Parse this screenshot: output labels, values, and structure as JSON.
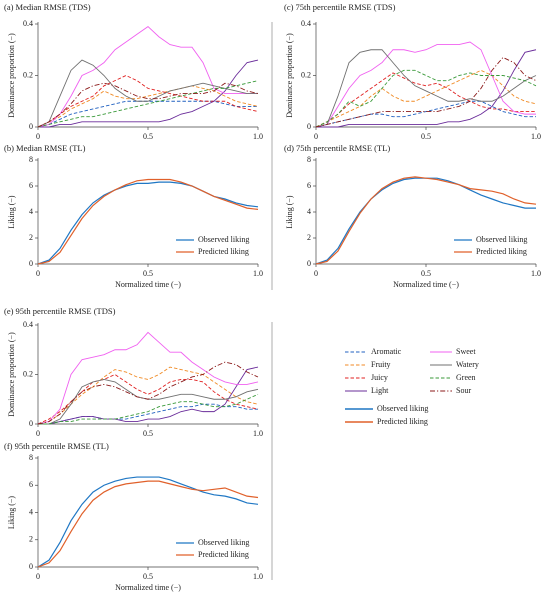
{
  "chart_data": [
    {
      "type": "line",
      "title": "(a) Median RMSE (TDS)",
      "ylabel": "Dominance proportion (−)",
      "x": [
        0,
        0.05,
        0.1,
        0.15,
        0.2,
        0.25,
        0.3,
        0.35,
        0.4,
        0.45,
        0.5,
        0.55,
        0.6,
        0.65,
        0.7,
        0.75,
        0.8,
        0.85,
        0.9,
        0.95,
        1
      ],
      "xlim": [
        0,
        1
      ],
      "xticks": [
        0,
        0.5,
        {
          "value": 1,
          "label": "1.0"
        }
      ],
      "ylim": [
        0,
        0.4
      ],
      "yticks": [
        0,
        0.2,
        0.4
      ],
      "legend": false,
      "series": [
        {
          "name": "Aromatic",
          "color": "#2060c0",
          "style": "dashed",
          "values": [
            0,
            0.01,
            0.03,
            0.05,
            0.06,
            0.07,
            0.08,
            0.09,
            0.1,
            0.1,
            0.1,
            0.1,
            0.1,
            0.1,
            0.1,
            0.1,
            0.1,
            0.09,
            0.08,
            0.08,
            0.08
          ]
        },
        {
          "name": "Fruity",
          "color": "#f08a24",
          "style": "dashed",
          "values": [
            0,
            0.02,
            0.04,
            0.07,
            0.09,
            0.11,
            0.14,
            0.12,
            0.11,
            0.11,
            0.12,
            0.13,
            0.14,
            0.15,
            0.16,
            0.15,
            0.14,
            0.12,
            0.1,
            0.09,
            0.08
          ]
        },
        {
          "name": "Juicy",
          "color": "#e02020",
          "style": "dashed",
          "values": [
            0,
            0.02,
            0.05,
            0.08,
            0.1,
            0.12,
            0.16,
            0.18,
            0.2,
            0.18,
            0.15,
            0.14,
            0.13,
            0.12,
            0.11,
            0.1,
            0.1,
            0.1,
            0.08,
            0.07,
            0.06
          ]
        },
        {
          "name": "Light",
          "color": "#6a2c9a",
          "style": "solid",
          "values": [
            0,
            0,
            0.01,
            0.01,
            0.02,
            0.02,
            0.02,
            0.02,
            0.02,
            0.02,
            0.02,
            0.02,
            0.03,
            0.05,
            0.06,
            0.08,
            0.1,
            0.14,
            0.2,
            0.25,
            0.26
          ]
        },
        {
          "name": "Sweet",
          "color": "#f060f0",
          "style": "solid",
          "values": [
            0,
            0.01,
            0.05,
            0.12,
            0.2,
            0.22,
            0.25,
            0.3,
            0.33,
            0.36,
            0.39,
            0.35,
            0.32,
            0.31,
            0.31,
            0.25,
            0.15,
            0.13,
            0.13,
            0.13,
            0.13
          ]
        },
        {
          "name": "Watery",
          "color": "#707070",
          "style": "solid",
          "values": [
            0,
            0.02,
            0.12,
            0.22,
            0.26,
            0.24,
            0.2,
            0.15,
            0.12,
            0.1,
            0.1,
            0.12,
            0.14,
            0.15,
            0.16,
            0.17,
            0.16,
            0.15,
            0.14,
            0.13,
            0.13
          ]
        },
        {
          "name": "Green",
          "color": "#3a9a3a",
          "style": "dashed",
          "values": [
            0,
            0.01,
            0.02,
            0.03,
            0.04,
            0.04,
            0.05,
            0.06,
            0.07,
            0.08,
            0.09,
            0.1,
            0.11,
            0.12,
            0.13,
            0.14,
            0.15,
            0.15,
            0.16,
            0.17,
            0.18
          ]
        },
        {
          "name": "Sour",
          "color": "#8b1a1a",
          "style": "dashdot",
          "values": [
            0,
            0.02,
            0.05,
            0.09,
            0.14,
            0.16,
            0.17,
            0.16,
            0.14,
            0.12,
            0.11,
            0.11,
            0.12,
            0.13,
            0.13,
            0.13,
            0.14,
            0.17,
            0.16,
            0.14,
            0.13
          ]
        }
      ]
    },
    {
      "type": "line",
      "title": "(b) Median RMSE (TL)",
      "ylabel": "Liking (−)",
      "xlabel": "Normalized time (−)",
      "x": [
        0,
        0.05,
        0.1,
        0.15,
        0.2,
        0.25,
        0.3,
        0.35,
        0.4,
        0.45,
        0.5,
        0.55,
        0.6,
        0.65,
        0.7,
        0.75,
        0.8,
        0.85,
        0.9,
        0.95,
        1
      ],
      "xlim": [
        0,
        1
      ],
      "xticks": [
        0,
        0.5,
        {
          "value": 1,
          "label": "1.0"
        }
      ],
      "ylim": [
        0,
        8
      ],
      "yticks": [
        0,
        2,
        4,
        6,
        8
      ],
      "legend": "lower right",
      "series": [
        {
          "name": "Observed liking",
          "color": "#1f77c4",
          "style": "solid",
          "values": [
            0,
            0.3,
            1.2,
            2.6,
            3.8,
            4.7,
            5.3,
            5.7,
            6.0,
            6.2,
            6.2,
            6.3,
            6.3,
            6.2,
            6.0,
            5.6,
            5.2,
            5.0,
            4.7,
            4.5,
            4.4
          ]
        },
        {
          "name": "Predicted liking",
          "color": "#e0602a",
          "style": "solid",
          "values": [
            0,
            0.2,
            0.9,
            2.2,
            3.5,
            4.5,
            5.2,
            5.7,
            6.1,
            6.4,
            6.5,
            6.5,
            6.5,
            6.3,
            6.0,
            5.6,
            5.2,
            4.9,
            4.6,
            4.3,
            4.2
          ]
        }
      ]
    },
    {
      "type": "line",
      "title": "(c) 75th percentile RMSE (TDS)",
      "ylabel": "Dominance proportion (−)",
      "x": [
        0,
        0.05,
        0.1,
        0.15,
        0.2,
        0.25,
        0.3,
        0.35,
        0.4,
        0.45,
        0.5,
        0.55,
        0.6,
        0.65,
        0.7,
        0.75,
        0.8,
        0.85,
        0.9,
        0.95,
        1
      ],
      "xlim": [
        0,
        1
      ],
      "xticks": [
        0,
        0.5,
        {
          "value": 1,
          "label": "1.0"
        }
      ],
      "ylim": [
        0,
        0.4
      ],
      "yticks": [
        0,
        0.2,
        0.4
      ],
      "legend": false,
      "series": [
        {
          "name": "Aromatic",
          "color": "#2060c0",
          "style": "dashed",
          "values": [
            0,
            0.01,
            0.02,
            0.03,
            0.04,
            0.05,
            0.05,
            0.04,
            0.04,
            0.05,
            0.06,
            0.07,
            0.08,
            0.09,
            0.1,
            0.1,
            0.08,
            0.06,
            0.05,
            0.04,
            0.04
          ]
        },
        {
          "name": "Fruity",
          "color": "#f08a24",
          "style": "dashed",
          "values": [
            0,
            0.02,
            0.04,
            0.06,
            0.08,
            0.12,
            0.15,
            0.12,
            0.1,
            0.1,
            0.12,
            0.14,
            0.16,
            0.18,
            0.2,
            0.22,
            0.2,
            0.16,
            0.12,
            0.1,
            0.09
          ]
        },
        {
          "name": "Juicy",
          "color": "#e02020",
          "style": "dashed",
          "values": [
            0,
            0.02,
            0.05,
            0.09,
            0.12,
            0.15,
            0.18,
            0.21,
            0.19,
            0.17,
            0.16,
            0.17,
            0.15,
            0.12,
            0.1,
            0.08,
            0.07,
            0.07,
            0.06,
            0.06,
            0.06
          ]
        },
        {
          "name": "Light",
          "color": "#6a2c9a",
          "style": "solid",
          "values": [
            0,
            0,
            0,
            0.01,
            0.01,
            0.01,
            0.01,
            0.01,
            0.01,
            0.01,
            0.01,
            0.01,
            0.02,
            0.02,
            0.03,
            0.05,
            0.08,
            0.14,
            0.22,
            0.29,
            0.3
          ]
        },
        {
          "name": "Sweet",
          "color": "#f060f0",
          "style": "solid",
          "values": [
            0,
            0.01,
            0.08,
            0.15,
            0.2,
            0.22,
            0.25,
            0.3,
            0.3,
            0.29,
            0.3,
            0.32,
            0.32,
            0.32,
            0.33,
            0.3,
            0.2,
            0.1,
            0.06,
            0.05,
            0.05
          ]
        },
        {
          "name": "Watery",
          "color": "#707070",
          "style": "solid",
          "values": [
            0,
            0.01,
            0.12,
            0.25,
            0.29,
            0.3,
            0.3,
            0.25,
            0.2,
            0.16,
            0.14,
            0.12,
            0.1,
            0.1,
            0.11,
            0.1,
            0.1,
            0.12,
            0.15,
            0.18,
            0.2
          ]
        },
        {
          "name": "Green",
          "color": "#3a9a3a",
          "style": "dashed",
          "values": [
            0,
            0.02,
            0.05,
            0.1,
            0.08,
            0.1,
            0.15,
            0.2,
            0.22,
            0.22,
            0.2,
            0.18,
            0.18,
            0.2,
            0.21,
            0.2,
            0.2,
            0.2,
            0.19,
            0.18,
            0.16
          ]
        },
        {
          "name": "Sour",
          "color": "#8b1a1a",
          "style": "dashdot",
          "values": [
            0,
            0.01,
            0.02,
            0.03,
            0.04,
            0.05,
            0.06,
            0.06,
            0.06,
            0.06,
            0.06,
            0.06,
            0.07,
            0.08,
            0.1,
            0.15,
            0.22,
            0.27,
            0.25,
            0.2,
            0.18
          ]
        }
      ]
    },
    {
      "type": "line",
      "title": "(d) 75th percentile RMSE (TL)",
      "ylabel": "Liking (−)",
      "xlabel": "Normalized time (−)",
      "x": [
        0,
        0.05,
        0.1,
        0.15,
        0.2,
        0.25,
        0.3,
        0.35,
        0.4,
        0.45,
        0.5,
        0.55,
        0.6,
        0.65,
        0.7,
        0.75,
        0.8,
        0.85,
        0.9,
        0.95,
        1
      ],
      "xlim": [
        0,
        1
      ],
      "xticks": [
        0,
        0.5,
        {
          "value": 1,
          "label": "1.0"
        }
      ],
      "ylim": [
        0,
        8
      ],
      "yticks": [
        0,
        2,
        4,
        6,
        8
      ],
      "legend": "lower right",
      "series": [
        {
          "name": "Observed liking",
          "color": "#1f77c4",
          "style": "solid",
          "values": [
            0,
            0.3,
            1.2,
            2.7,
            4.0,
            5.0,
            5.7,
            6.2,
            6.5,
            6.6,
            6.6,
            6.6,
            6.4,
            6.1,
            5.7,
            5.3,
            5.0,
            4.7,
            4.5,
            4.3,
            4.3
          ]
        },
        {
          "name": "Predicted liking",
          "color": "#e0602a",
          "style": "solid",
          "values": [
            0,
            0.2,
            1.0,
            2.5,
            3.9,
            5.0,
            5.8,
            6.3,
            6.6,
            6.7,
            6.6,
            6.5,
            6.3,
            6.1,
            5.8,
            5.7,
            5.6,
            5.4,
            5.0,
            4.7,
            4.6
          ]
        }
      ]
    },
    {
      "type": "line",
      "title": "(e) 95th percentile RMSE (TDS)",
      "ylabel": "Dominance proportion (−)",
      "x": [
        0,
        0.05,
        0.1,
        0.15,
        0.2,
        0.25,
        0.3,
        0.35,
        0.4,
        0.45,
        0.5,
        0.55,
        0.6,
        0.65,
        0.7,
        0.75,
        0.8,
        0.85,
        0.9,
        0.95,
        1
      ],
      "xlim": [
        0,
        1
      ],
      "xticks": [
        0,
        0.5,
        {
          "value": 1,
          "label": "1.0"
        }
      ],
      "ylim": [
        0,
        0.4
      ],
      "yticks": [
        0,
        0.2,
        0.4
      ],
      "legend": false,
      "series": [
        {
          "name": "Aromatic",
          "color": "#2060c0",
          "style": "dashed",
          "values": [
            0,
            0,
            0.01,
            0.02,
            0.03,
            0.03,
            0.02,
            0.02,
            0.02,
            0.03,
            0.04,
            0.05,
            0.06,
            0.07,
            0.07,
            0.08,
            0.08,
            0.07,
            0.07,
            0.06,
            0.06
          ]
        },
        {
          "name": "Fruity",
          "color": "#f08a24",
          "style": "dashed",
          "values": [
            0,
            0.01,
            0.04,
            0.08,
            0.12,
            0.15,
            0.19,
            0.22,
            0.21,
            0.19,
            0.18,
            0.2,
            0.23,
            0.22,
            0.21,
            0.2,
            0.17,
            0.14,
            0.11,
            0.09,
            0.08
          ]
        },
        {
          "name": "Juicy",
          "color": "#e02020",
          "style": "dashed",
          "values": [
            0,
            0.02,
            0.05,
            0.09,
            0.13,
            0.17,
            0.18,
            0.2,
            0.17,
            0.14,
            0.12,
            0.14,
            0.17,
            0.18,
            0.18,
            0.17,
            0.13,
            0.1,
            0.08,
            0.07,
            0.06
          ]
        },
        {
          "name": "Light",
          "color": "#6a2c9a",
          "style": "solid",
          "values": [
            0,
            0,
            0.01,
            0.02,
            0.03,
            0.03,
            0.02,
            0.02,
            0.01,
            0.01,
            0.02,
            0.02,
            0.03,
            0.05,
            0.06,
            0.05,
            0.05,
            0.08,
            0.15,
            0.22,
            0.23
          ]
        },
        {
          "name": "Sweet",
          "color": "#f060f0",
          "style": "solid",
          "values": [
            0,
            0.01,
            0.06,
            0.2,
            0.26,
            0.27,
            0.28,
            0.3,
            0.3,
            0.32,
            0.37,
            0.33,
            0.29,
            0.29,
            0.25,
            0.22,
            0.19,
            0.17,
            0.16,
            0.16,
            0.17
          ]
        },
        {
          "name": "Watery",
          "color": "#707070",
          "style": "solid",
          "values": [
            0,
            0,
            0.02,
            0.08,
            0.15,
            0.17,
            0.18,
            0.17,
            0.14,
            0.11,
            0.1,
            0.1,
            0.11,
            0.12,
            0.12,
            0.11,
            0.1,
            0.1,
            0.11,
            0.13,
            0.14
          ]
        },
        {
          "name": "Green",
          "color": "#3a9a3a",
          "style": "dashed",
          "values": [
            0,
            0,
            0.01,
            0.01,
            0.02,
            0.02,
            0.02,
            0.02,
            0.03,
            0.04,
            0.05,
            0.07,
            0.08,
            0.09,
            0.09,
            0.08,
            0.07,
            0.07,
            0.08,
            0.1,
            0.12
          ]
        },
        {
          "name": "Sour",
          "color": "#8b1a1a",
          "style": "dashdot",
          "values": [
            0,
            0.01,
            0.04,
            0.09,
            0.13,
            0.15,
            0.16,
            0.15,
            0.13,
            0.11,
            0.1,
            0.12,
            0.15,
            0.17,
            0.19,
            0.2,
            0.23,
            0.25,
            0.24,
            0.21,
            0.19
          ]
        }
      ]
    },
    {
      "type": "line",
      "title": "(f) 95th percentile RMSE (TL)",
      "ylabel": "Liking (−)",
      "xlabel": "Normalized time (−)",
      "x": [
        0,
        0.05,
        0.1,
        0.15,
        0.2,
        0.25,
        0.3,
        0.35,
        0.4,
        0.45,
        0.5,
        0.55,
        0.6,
        0.65,
        0.7,
        0.75,
        0.8,
        0.85,
        0.9,
        0.95,
        1
      ],
      "xlim": [
        0,
        1
      ],
      "xticks": [
        0,
        0.5,
        {
          "value": 1,
          "label": "1.0"
        }
      ],
      "ylim": [
        0,
        8
      ],
      "yticks": [
        0,
        2,
        4,
        6,
        8
      ],
      "legend": "lower right",
      "series": [
        {
          "name": "Observed liking",
          "color": "#1f77c4",
          "style": "solid",
          "values": [
            0,
            0.5,
            1.8,
            3.4,
            4.6,
            5.5,
            6.0,
            6.3,
            6.5,
            6.6,
            6.6,
            6.6,
            6.4,
            6.1,
            5.8,
            5.5,
            5.3,
            5.2,
            5.0,
            4.7,
            4.6
          ]
        },
        {
          "name": "Predicted liking",
          "color": "#e0602a",
          "style": "solid",
          "values": [
            0,
            0.3,
            1.2,
            2.6,
            3.9,
            4.9,
            5.5,
            5.9,
            6.1,
            6.2,
            6.3,
            6.3,
            6.1,
            5.9,
            5.7,
            5.6,
            5.7,
            5.8,
            5.5,
            5.2,
            5.1
          ]
        }
      ]
    }
  ]
}
